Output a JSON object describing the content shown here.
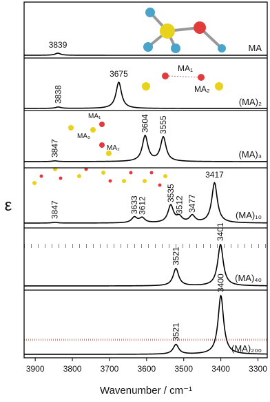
{
  "chart_data": {
    "type": "line",
    "xlabel": "Wavenumber / cm⁻¹",
    "ylabel": "ε",
    "xlim": [
      3930,
      3275
    ],
    "xticks": [
      3900,
      3800,
      3700,
      3600,
      3500,
      3400,
      3300
    ],
    "series": [
      {
        "name": "MA",
        "color": "#000000",
        "peaks": [
          3839
        ],
        "intensities": [
          3
        ]
      },
      {
        "name": "(MA)₂",
        "color": "#000000",
        "peaks": [
          3838,
          3675
        ],
        "intensities": [
          2,
          38
        ]
      },
      {
        "name": "(MA)₃",
        "color": "#000000",
        "peaks": [
          3847,
          3604,
          3555
        ],
        "intensities": [
          1,
          37,
          35
        ]
      },
      {
        "name": "(MA)₁₀",
        "color": "#000000",
        "peaks": [
          3847,
          3633,
          3612,
          3535,
          3512,
          3477,
          3417
        ],
        "intensities": [
          1,
          8,
          7,
          25,
          8,
          10,
          58
        ]
      },
      {
        "name": "(MA)₄₀",
        "color": "#000000",
        "peaks": [
          3521,
          3401
        ],
        "intensities": [
          25,
          60
        ]
      },
      {
        "name": "(MA)₂₀₀",
        "color": "#000000",
        "peaks": [
          3521,
          3400
        ],
        "intensities": [
          14,
          85
        ]
      }
    ],
    "annotations": [
      "MA₁",
      "MA₂",
      "MA₁",
      "MA₃",
      "MA₂"
    ]
  }
}
